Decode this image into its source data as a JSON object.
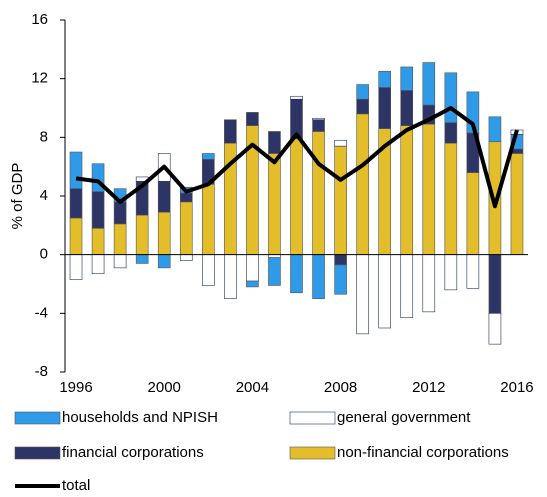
{
  "chart_data": {
    "type": "bar",
    "stacked": true,
    "ylabel": "% of GDP",
    "x": [
      1996,
      1997,
      1998,
      1999,
      2000,
      2001,
      2002,
      2003,
      2004,
      2005,
      2006,
      2007,
      2008,
      2009,
      2010,
      2011,
      2012,
      2013,
      2014,
      2015,
      2016
    ],
    "xlim": [
      1995.5,
      2016.5
    ],
    "xticks": [
      1996,
      2000,
      2004,
      2008,
      2012,
      2016
    ],
    "ylim": [
      -8,
      16
    ],
    "yticks": [
      -8,
      -4,
      0,
      4,
      8,
      12,
      16
    ],
    "series": [
      {
        "name": "households and NPISH",
        "type": "bar",
        "color": "#2f9be8",
        "values": [
          2.5,
          1.9,
          0.9,
          -0.6,
          -0.9,
          0.4,
          0.4,
          0,
          -0.4,
          -1.9,
          -2.6,
          -3.0,
          -2.0,
          1.0,
          1.1,
          1.6,
          2.9,
          3.4,
          2.8,
          1.7,
          1.0
        ]
      },
      {
        "name": "general government",
        "type": "bar",
        "color": "#ffffff",
        "values": [
          -1.7,
          -1.3,
          -0.9,
          0.3,
          1.9,
          -0.4,
          -2.1,
          -3.0,
          -1.8,
          -0.2,
          0.2,
          0.1,
          0.4,
          -5.4,
          -5.0,
          -4.3,
          -3.9,
          -2.4,
          -2.3,
          -2.1,
          0.3
        ]
      },
      {
        "name": "financial corporations",
        "type": "bar",
        "color": "#2d3566",
        "values": [
          2.0,
          2.5,
          1.5,
          2.3,
          2.1,
          0.6,
          1.7,
          1.6,
          0.9,
          1.5,
          2.7,
          0.8,
          -0.7,
          1.0,
          2.8,
          2.4,
          1.3,
          1.4,
          2.7,
          -4.0,
          0.3
        ]
      },
      {
        "name": "non-financial corporations",
        "type": "bar",
        "color": "#e3bd2a",
        "values": [
          2.5,
          1.8,
          2.1,
          2.7,
          2.9,
          3.6,
          4.8,
          7.6,
          8.8,
          6.9,
          7.9,
          8.4,
          7.4,
          9.6,
          8.6,
          8.8,
          8.9,
          7.6,
          5.6,
          7.7,
          6.9
        ]
      },
      {
        "name": "total",
        "type": "line",
        "color": "#000000",
        "values": [
          5.2,
          5.0,
          3.6,
          4.7,
          6.0,
          4.3,
          4.8,
          6.2,
          7.5,
          6.3,
          8.2,
          6.2,
          5.1,
          6.1,
          7.4,
          8.5,
          9.2,
          10.0,
          8.9,
          3.3,
          8.5
        ]
      }
    ]
  }
}
